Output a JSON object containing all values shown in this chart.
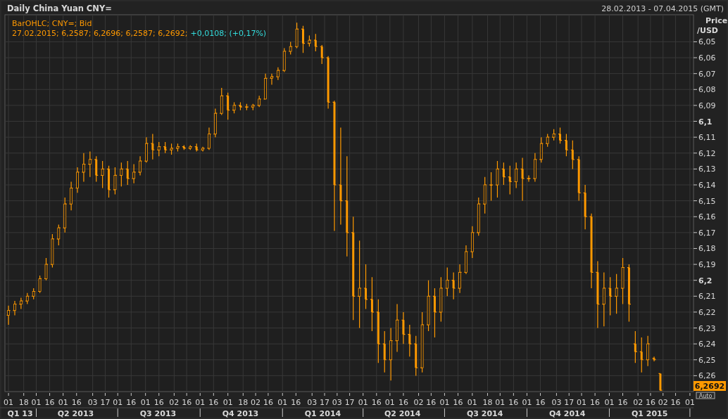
{
  "chart_data": {
    "type": "candlestick",
    "title": "Daily China Yuan CNY=",
    "subtitle": "28.02.2013 - 07.04.2015 (GMT)",
    "ylabel": "Price /USD",
    "annotations": [
      "BarOHLC; CNY=; Bid",
      "27.02.2015; 6,2587; 6,2696; 6,2587; 6,2692;",
      "+0,0108; (+0,17%)",
      "Auto",
      "6,2692"
    ],
    "x": [
      "2013-03-01",
      "2013-03-08",
      "2013-03-15",
      "2013-03-22",
      "2013-03-29",
      "2013-04-05",
      "2013-04-12",
      "2013-04-19",
      "2013-04-26",
      "2013-05-03",
      "2013-05-10",
      "2013-05-17",
      "2013-05-24",
      "2013-05-31",
      "2013-06-07",
      "2013-06-14",
      "2013-06-21",
      "2013-06-28",
      "2013-07-05",
      "2013-07-12",
      "2013-07-19",
      "2013-07-26",
      "2013-08-02",
      "2013-08-09",
      "2013-08-16",
      "2013-08-23",
      "2013-08-30",
      "2013-09-06",
      "2013-09-13",
      "2013-09-20",
      "2013-09-27",
      "2013-10-04",
      "2013-10-11",
      "2013-10-18",
      "2013-10-25",
      "2013-11-01",
      "2013-11-08",
      "2013-11-15",
      "2013-11-22",
      "2013-11-29",
      "2013-12-06",
      "2013-12-13",
      "2013-12-20",
      "2013-12-27",
      "2014-01-03",
      "2014-01-10",
      "2014-01-17",
      "2014-01-24",
      "2014-01-31",
      "2014-02-07",
      "2014-02-14",
      "2014-02-21",
      "2014-02-28",
      "2014-03-07",
      "2014-03-14",
      "2014-03-21",
      "2014-03-28",
      "2014-04-04",
      "2014-04-11",
      "2014-04-18",
      "2014-04-25",
      "2014-05-02",
      "2014-05-09",
      "2014-05-16",
      "2014-05-23",
      "2014-05-30",
      "2014-06-06",
      "2014-06-13",
      "2014-06-20",
      "2014-06-27",
      "2014-07-04",
      "2014-07-11",
      "2014-07-18",
      "2014-07-25",
      "2014-08-01",
      "2014-08-08",
      "2014-08-15",
      "2014-08-22",
      "2014-08-29",
      "2014-09-05",
      "2014-09-12",
      "2014-09-19",
      "2014-09-26",
      "2014-10-03",
      "2014-10-10",
      "2014-10-17",
      "2014-10-24",
      "2014-10-31",
      "2014-11-07",
      "2014-11-14",
      "2014-11-21",
      "2014-11-28",
      "2014-12-05",
      "2014-12-12",
      "2014-12-19",
      "2014-12-26",
      "2015-01-02",
      "2015-01-09",
      "2015-01-16",
      "2015-01-23",
      "2015-01-30",
      "2015-02-06",
      "2015-02-13",
      "2015-02-20",
      "2015-02-27"
    ],
    "ohlc": [
      [
        6.222,
        6.228,
        6.216,
        6.219
      ],
      [
        6.219,
        6.222,
        6.213,
        6.215
      ],
      [
        6.215,
        6.218,
        6.211,
        6.213
      ],
      [
        6.213,
        6.215,
        6.208,
        6.21
      ],
      [
        6.21,
        6.212,
        6.205,
        6.207
      ],
      [
        6.207,
        6.208,
        6.197,
        6.199
      ],
      [
        6.199,
        6.2,
        6.186,
        6.19
      ],
      [
        6.19,
        6.192,
        6.171,
        6.174
      ],
      [
        6.174,
        6.178,
        6.165,
        6.167
      ],
      [
        6.167,
        6.17,
        6.148,
        6.152
      ],
      [
        6.152,
        6.156,
        6.138,
        6.142
      ],
      [
        6.142,
        6.145,
        6.129,
        6.132
      ],
      [
        6.132,
        6.138,
        6.12,
        6.127
      ],
      [
        6.127,
        6.135,
        6.119,
        6.124
      ],
      [
        6.124,
        6.138,
        6.122,
        6.134
      ],
      [
        6.134,
        6.142,
        6.125,
        6.13
      ],
      [
        6.13,
        6.148,
        6.128,
        6.143
      ],
      [
        6.143,
        6.146,
        6.129,
        6.134
      ],
      [
        6.134,
        6.141,
        6.126,
        6.13
      ],
      [
        6.13,
        6.14,
        6.125,
        6.136
      ],
      [
        6.136,
        6.139,
        6.127,
        6.132
      ],
      [
        6.132,
        6.134,
        6.122,
        6.125
      ],
      [
        6.125,
        6.126,
        6.11,
        6.114
      ],
      [
        6.114,
        6.124,
        6.108,
        6.118
      ],
      [
        6.118,
        6.122,
        6.113,
        6.116
      ],
      [
        6.116,
        6.12,
        6.113,
        6.118
      ],
      [
        6.118,
        6.121,
        6.114,
        6.117
      ],
      [
        6.117,
        6.119,
        6.114,
        6.116
      ],
      [
        6.116,
        6.118,
        6.115,
        6.117
      ],
      [
        6.117,
        6.118,
        6.115,
        6.116
      ],
      [
        6.116,
        6.119,
        6.114,
        6.118
      ],
      [
        6.118,
        6.119,
        6.116,
        6.117
      ],
      [
        6.117,
        6.118,
        6.104,
        6.108
      ],
      [
        6.108,
        6.11,
        6.092,
        6.095
      ],
      [
        6.095,
        6.096,
        6.079,
        6.084
      ],
      [
        6.084,
        6.099,
        6.082,
        6.093
      ],
      [
        6.093,
        6.095,
        6.088,
        6.09
      ],
      [
        6.09,
        6.093,
        6.088,
        6.091
      ],
      [
        6.091,
        6.093,
        6.089,
        6.091
      ],
      [
        6.091,
        6.093,
        6.089,
        6.09
      ],
      [
        6.09,
        6.091,
        6.084,
        6.086
      ],
      [
        6.086,
        6.086,
        6.07,
        6.073
      ],
      [
        6.073,
        6.077,
        6.07,
        6.072
      ],
      [
        6.072,
        6.074,
        6.066,
        6.068
      ],
      [
        6.068,
        6.069,
        6.054,
        6.056
      ],
      [
        6.056,
        6.058,
        6.05,
        6.053
      ],
      [
        6.053,
        6.054,
        6.038,
        6.042
      ],
      [
        6.042,
        6.057,
        6.04,
        6.051
      ],
      [
        6.051,
        6.053,
        6.046,
        6.049
      ],
      [
        6.049,
        6.056,
        6.045,
        6.053
      ],
      [
        6.053,
        6.064,
        6.052,
        6.06
      ],
      [
        6.06,
        6.092,
        6.059,
        6.088
      ],
      [
        6.088,
        6.169,
        6.087,
        6.14
      ],
      [
        6.14,
        6.165,
        6.104,
        6.15
      ],
      [
        6.15,
        6.185,
        6.122,
        6.17
      ],
      [
        6.17,
        6.225,
        6.16,
        6.21
      ],
      [
        6.21,
        6.23,
        6.175,
        6.205
      ],
      [
        6.205,
        6.218,
        6.19,
        6.212
      ],
      [
        6.212,
        6.232,
        6.198,
        6.22
      ],
      [
        6.22,
        6.252,
        6.212,
        6.24
      ],
      [
        6.24,
        6.258,
        6.232,
        6.25
      ],
      [
        6.25,
        6.263,
        6.23,
        6.238
      ],
      [
        6.238,
        6.245,
        6.215,
        6.225
      ],
      [
        6.225,
        6.24,
        6.22,
        6.234
      ],
      [
        6.234,
        6.248,
        6.228,
        6.24
      ],
      [
        6.24,
        6.26,
        6.235,
        6.255
      ],
      [
        6.255,
        6.258,
        6.22,
        6.228
      ],
      [
        6.228,
        6.232,
        6.2,
        6.21
      ],
      [
        6.21,
        6.236,
        6.205,
        6.22
      ],
      [
        6.22,
        6.226,
        6.198,
        6.205
      ],
      [
        6.205,
        6.21,
        6.192,
        6.2
      ],
      [
        6.2,
        6.212,
        6.195,
        6.205
      ],
      [
        6.205,
        6.208,
        6.19,
        6.195
      ],
      [
        6.195,
        6.196,
        6.178,
        6.182
      ],
      [
        6.182,
        6.186,
        6.166,
        6.17
      ],
      [
        6.17,
        6.172,
        6.148,
        6.152
      ],
      [
        6.152,
        6.158,
        6.135,
        6.14
      ],
      [
        6.14,
        6.15,
        6.132,
        6.14
      ],
      [
        6.14,
        6.148,
        6.125,
        6.13
      ],
      [
        6.13,
        6.14,
        6.126,
        6.135
      ],
      [
        6.135,
        6.146,
        6.128,
        6.138
      ],
      [
        6.138,
        6.142,
        6.126,
        6.13
      ],
      [
        6.13,
        6.15,
        6.123,
        6.136
      ],
      [
        6.136,
        6.138,
        6.134,
        6.136
      ],
      [
        6.136,
        6.138,
        6.12,
        6.124
      ],
      [
        6.124,
        6.126,
        6.11,
        6.114
      ],
      [
        6.114,
        6.116,
        6.108,
        6.11
      ],
      [
        6.11,
        6.112,
        6.105,
        6.108
      ],
      [
        6.108,
        6.114,
        6.104,
        6.112
      ],
      [
        6.112,
        6.122,
        6.108,
        6.118
      ],
      [
        6.118,
        6.13,
        6.112,
        6.124
      ],
      [
        6.124,
        6.15,
        6.122,
        6.145
      ],
      [
        6.145,
        6.168,
        6.14,
        6.16
      ],
      [
        6.16,
        6.205,
        6.158,
        6.195
      ],
      [
        6.195,
        6.23,
        6.188,
        6.215
      ],
      [
        6.215,
        6.229,
        6.195,
        6.205
      ],
      [
        6.205,
        6.222,
        6.198,
        6.21
      ],
      [
        6.21,
        6.221,
        6.196,
        6.205
      ],
      [
        6.205,
        6.215,
        6.186,
        6.192
      ],
      [
        6.192,
        6.226,
        6.19,
        6.215
      ],
      [
        6.24,
        6.252,
        6.232,
        6.245
      ],
      [
        6.245,
        6.258,
        6.236,
        6.25
      ],
      [
        6.25,
        6.254,
        6.235,
        6.24
      ],
      [
        6.249,
        6.251,
        6.248,
        6.25
      ],
      [
        6.2587,
        6.2696,
        6.2587,
        6.2692
      ]
    ],
    "color": "#ff9900",
    "xlim": [
      "2013-02-25",
      "2015-04-05"
    ],
    "xticks": [
      {
        "value": "2013-03-01",
        "label": "01"
      },
      {
        "value": "2013-03-18",
        "label": "18"
      },
      {
        "value": "2013-04-01",
        "label": "01"
      },
      {
        "value": "2013-04-16",
        "label": "16"
      },
      {
        "value": "2013-05-01",
        "label": "01"
      },
      {
        "value": "2013-05-16",
        "label": "16"
      },
      {
        "value": "2013-06-03",
        "label": "03"
      },
      {
        "value": "2013-06-17",
        "label": "17"
      },
      {
        "value": "2013-07-01",
        "label": "01"
      },
      {
        "value": "2013-07-16",
        "label": "16"
      },
      {
        "value": "2013-08-01",
        "label": "01"
      },
      {
        "value": "2013-08-16",
        "label": "16"
      },
      {
        "value": "2013-09-02",
        "label": "02"
      },
      {
        "value": "2013-09-16",
        "label": "16"
      },
      {
        "value": "2013-10-01",
        "label": "01"
      },
      {
        "value": "2013-10-16",
        "label": "16"
      },
      {
        "value": "2013-11-01",
        "label": "01"
      },
      {
        "value": "2013-11-18",
        "label": "18"
      },
      {
        "value": "2013-12-02",
        "label": "02"
      },
      {
        "value": "2013-12-16",
        "label": "16"
      },
      {
        "value": "2014-01-01",
        "label": "01"
      },
      {
        "value": "2014-01-16",
        "label": "16"
      },
      {
        "value": "2014-02-03",
        "label": "03"
      },
      {
        "value": "2014-02-17",
        "label": "17"
      },
      {
        "value": "2014-03-03",
        "label": "03"
      },
      {
        "value": "2014-03-17",
        "label": "17"
      },
      {
        "value": "2014-04-01",
        "label": "01"
      },
      {
        "value": "2014-04-16",
        "label": "16"
      },
      {
        "value": "2014-05-01",
        "label": "01"
      },
      {
        "value": "2014-05-16",
        "label": "16"
      },
      {
        "value": "2014-06-02",
        "label": "02"
      },
      {
        "value": "2014-06-16",
        "label": "16"
      },
      {
        "value": "2014-07-01",
        "label": "01"
      },
      {
        "value": "2014-07-16",
        "label": "16"
      },
      {
        "value": "2014-08-01",
        "label": "01"
      },
      {
        "value": "2014-08-18",
        "label": "18"
      },
      {
        "value": "2014-09-01",
        "label": "01"
      },
      {
        "value": "2014-09-16",
        "label": "16"
      },
      {
        "value": "2014-10-01",
        "label": "01"
      },
      {
        "value": "2014-10-16",
        "label": "16"
      },
      {
        "value": "2014-11-03",
        "label": "03"
      },
      {
        "value": "2014-11-17",
        "label": "17"
      },
      {
        "value": "2014-12-01",
        "label": "01"
      },
      {
        "value": "2014-12-16",
        "label": "16"
      },
      {
        "value": "2015-01-01",
        "label": "01"
      },
      {
        "value": "2015-01-16",
        "label": "16"
      },
      {
        "value": "2015-02-02",
        "label": "02"
      },
      {
        "value": "2015-02-16",
        "label": "16"
      },
      {
        "value": "2015-03-02",
        "label": "02"
      },
      {
        "value": "2015-03-16",
        "label": "16"
      },
      {
        "value": "2015-04-01",
        "label": "01"
      }
    ],
    "x2lim": [
      "2013-02-25",
      "2015-04-05"
    ],
    "x2ticks": [
      {
        "value": "2013-03-14",
        "label": "Q1 13"
      },
      {
        "value": "2013-04-01",
        "label": null
      },
      {
        "value": "2013-05-15",
        "label": "Q2 2013"
      },
      {
        "value": "2013-07-01",
        "label": null
      },
      {
        "value": "2013-08-15",
        "label": "Q3 2013"
      },
      {
        "value": "2013-10-01",
        "label": null
      },
      {
        "value": "2013-11-15",
        "label": "Q4 2013"
      },
      {
        "value": "2014-01-01",
        "label": null
      },
      {
        "value": "2014-02-15",
        "label": "Q1 2014"
      },
      {
        "value": "2014-04-01",
        "label": null
      },
      {
        "value": "2014-05-15",
        "label": "Q2 2014"
      },
      {
        "value": "2014-07-01",
        "label": null
      },
      {
        "value": "2014-08-15",
        "label": "Q3 2014"
      },
      {
        "value": "2014-10-01",
        "label": null
      },
      {
        "value": "2014-11-15",
        "label": "Q4 2014"
      },
      {
        "value": "2015-01-01",
        "label": null
      },
      {
        "value": "2015-02-15",
        "label": "Q1 2015"
      },
      {
        "value": "2015-04-01",
        "label": null
      }
    ],
    "ylim": [
      6.27,
      6.033
    ],
    "yticks": [
      {
        "value": 6.05,
        "label": "6,05"
      },
      {
        "value": 6.06,
        "label": "6,06"
      },
      {
        "value": 6.07,
        "label": "6,07"
      },
      {
        "value": 6.08,
        "label": "6,08"
      },
      {
        "value": 6.09,
        "label": "6,09"
      },
      {
        "value": 6.1,
        "label": "6,1"
      },
      {
        "value": 6.11,
        "label": "6,11"
      },
      {
        "value": 6.12,
        "label": "6,12"
      },
      {
        "value": 6.13,
        "label": "6,13"
      },
      {
        "value": 6.14,
        "label": "6,14"
      },
      {
        "value": 6.15,
        "label": "6,15"
      },
      {
        "value": 6.16,
        "label": "6,16"
      },
      {
        "value": 6.17,
        "label": "6,17"
      },
      {
        "value": 6.18,
        "label": "6,18"
      },
      {
        "value": 6.19,
        "label": "6,19"
      },
      {
        "value": 6.2,
        "label": "6,2"
      },
      {
        "value": 6.21,
        "label": "6,21"
      },
      {
        "value": 6.22,
        "label": "6,22"
      },
      {
        "value": 6.23,
        "label": "6,23"
      },
      {
        "value": 6.24,
        "label": "6,24"
      },
      {
        "value": 6.25,
        "label": "6,25"
      },
      {
        "value": 6.26,
        "label": "6,26"
      }
    ],
    "grid": true
  }
}
